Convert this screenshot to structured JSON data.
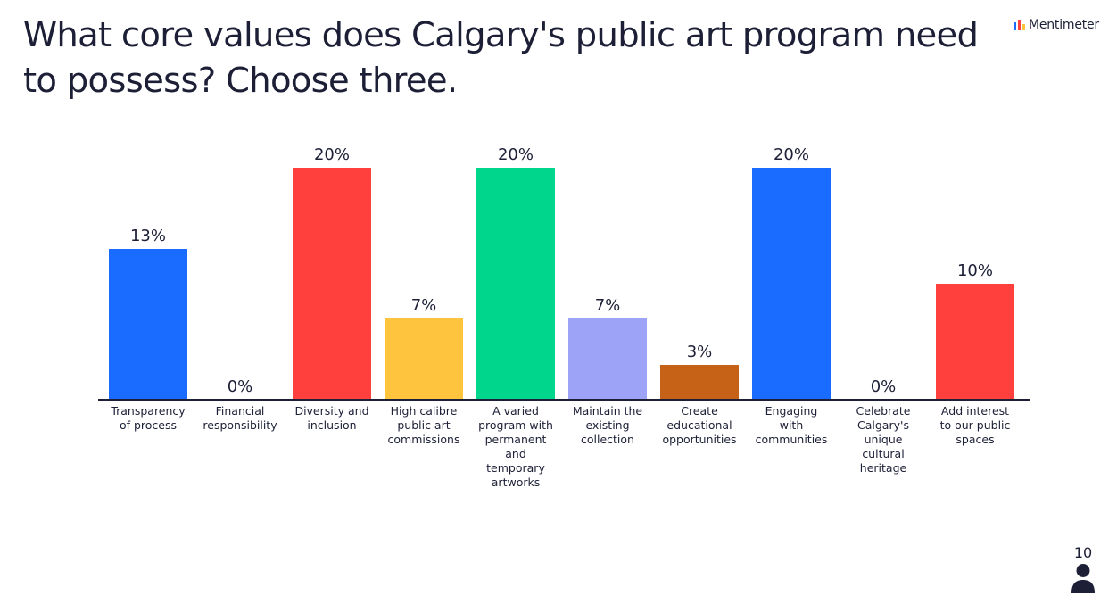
{
  "title": "What core values does Calgary's public art program need to possess? Choose three.",
  "brand": {
    "name": "Mentimeter",
    "icon": "mentimeter-logo-icon"
  },
  "participants": {
    "count": "10",
    "icon": "person-icon"
  },
  "chart_data": {
    "type": "bar",
    "value_suffix": "%",
    "ylim": [
      0,
      20
    ],
    "grid": false,
    "categories": [
      [
        "Transparency",
        "of process"
      ],
      [
        "Financial",
        "responsibility"
      ],
      [
        "Diversity and",
        "inclusion"
      ],
      [
        "High calibre",
        "public art",
        "commissions"
      ],
      [
        "A varied",
        "program with",
        "permanent",
        "and",
        "temporary",
        "artworks"
      ],
      [
        "Maintain the",
        "existing",
        "collection"
      ],
      [
        "Create",
        "educational",
        "opportunities"
      ],
      [
        "Engaging",
        "with",
        "communities"
      ],
      [
        "Celebrate",
        "Calgary's",
        "unique",
        "cultural",
        "heritage"
      ],
      [
        "Add interest",
        "to our public",
        "spaces"
      ]
    ],
    "values": [
      13,
      0,
      20,
      7,
      20,
      7,
      3,
      20,
      0,
      10
    ],
    "colors": [
      "#196cff",
      "#196cff",
      "#ff403d",
      "#ffc43d",
      "#00d78c",
      "#9da3f6",
      "#c66217",
      "#196cff",
      "#196cff",
      "#ff403d"
    ]
  }
}
